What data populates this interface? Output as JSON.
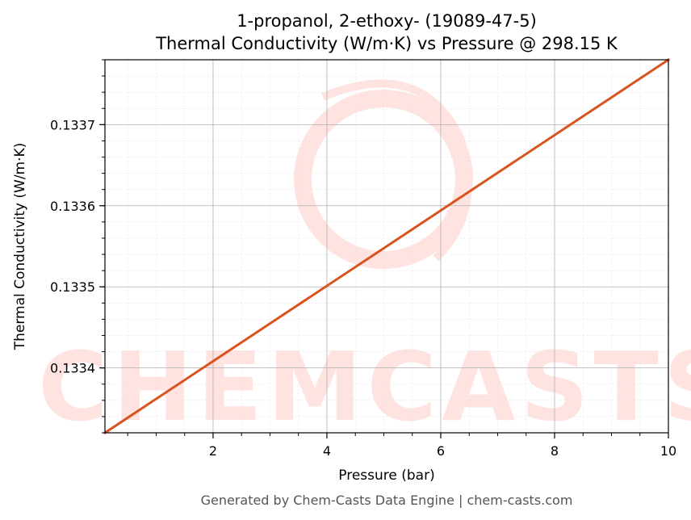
{
  "chart_data": {
    "type": "line",
    "title_line1": "1-propanol, 2-ethoxy- (19089-47-5)",
    "title_line2": "Thermal Conductivity (W/m·K) vs Pressure @ 298.15 K",
    "xlabel": "Pressure (bar)",
    "ylabel": "Thermal Conductivity (W/m·K)",
    "xlim": [
      0.1,
      10
    ],
    "ylim": [
      0.13332,
      0.13378
    ],
    "x_ticks": [
      2,
      4,
      6,
      8,
      10
    ],
    "x_tick_labels": [
      "2",
      "4",
      "6",
      "8",
      "10"
    ],
    "y_ticks": [
      0.1334,
      0.1335,
      0.1336,
      0.1337
    ],
    "y_tick_labels": [
      "0.1334",
      "0.1335",
      "0.1336",
      "0.1337"
    ],
    "grid": true,
    "series": [
      {
        "color": "#d9531e",
        "x": [
          0.1,
          10
        ],
        "y": [
          0.13332,
          0.13378
        ]
      }
    ]
  },
  "watermark": {
    "text": "CHEMCASTS",
    "color": "#ffe3e0"
  },
  "footer": "Generated by Chem-Casts Data Engine | chem-casts.com"
}
